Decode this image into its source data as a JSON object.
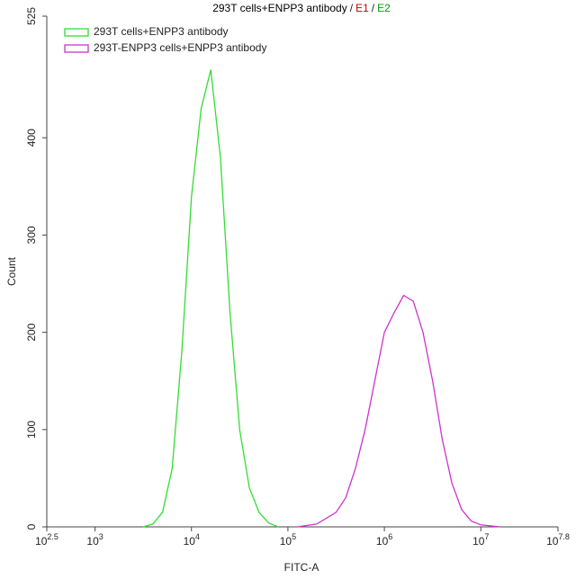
{
  "chart_data": {
    "type": "line",
    "title": [
      "293T cells+ENPP3 antibody",
      "E1",
      "E2"
    ],
    "title_separator": "/",
    "title_colors": [
      "#000000",
      "#c00000",
      "#00a000"
    ],
    "xlabel": "FITC-A",
    "ylabel": "Count",
    "xscale": "log",
    "xlim": [
      316.23,
      63095734
    ],
    "xticks": [
      {
        "value": 316.23,
        "label": "10",
        "power": "2.5"
      },
      {
        "value": 1000,
        "label": "10",
        "power": "3"
      },
      {
        "value": 10000,
        "label": "10",
        "power": "4"
      },
      {
        "value": 100000,
        "label": "10",
        "power": "5"
      },
      {
        "value": 1000000,
        "label": "10",
        "power": "6"
      },
      {
        "value": 10000000,
        "label": "10",
        "power": "7"
      },
      {
        "value": 63095734,
        "label": "10",
        "power": "7.8"
      }
    ],
    "ylim": [
      0,
      525
    ],
    "yticks": [
      0,
      100,
      200,
      300,
      400,
      525
    ],
    "legend": "top-left",
    "series": [
      {
        "name": "293T cells+ENPP3 antibody",
        "color": "#33dd33",
        "x": [
          3162,
          3981,
          5012,
          6310,
          7943,
          10000,
          12589,
          15849,
          19953,
          25119,
          31623,
          39811,
          50119,
          63096,
          79433
        ],
        "values": [
          0,
          3,
          15,
          60,
          180,
          340,
          430,
          470,
          380,
          220,
          100,
          40,
          15,
          4,
          0
        ]
      },
      {
        "name": "293T-ENPP3 cells+ENPP3 antibody",
        "color": "#cc33cc",
        "x": [
          125893,
          199526,
          316228,
          398107,
          501187,
          630957,
          794328,
          1000000,
          1258925,
          1584893,
          1995262,
          2511886,
          3162278,
          3981072,
          5011872,
          6309573,
          7943282,
          10000000,
          15848932
        ],
        "values": [
          0,
          3,
          15,
          30,
          60,
          100,
          150,
          200,
          220,
          238,
          232,
          200,
          150,
          90,
          45,
          18,
          6,
          2,
          0
        ]
      }
    ]
  }
}
